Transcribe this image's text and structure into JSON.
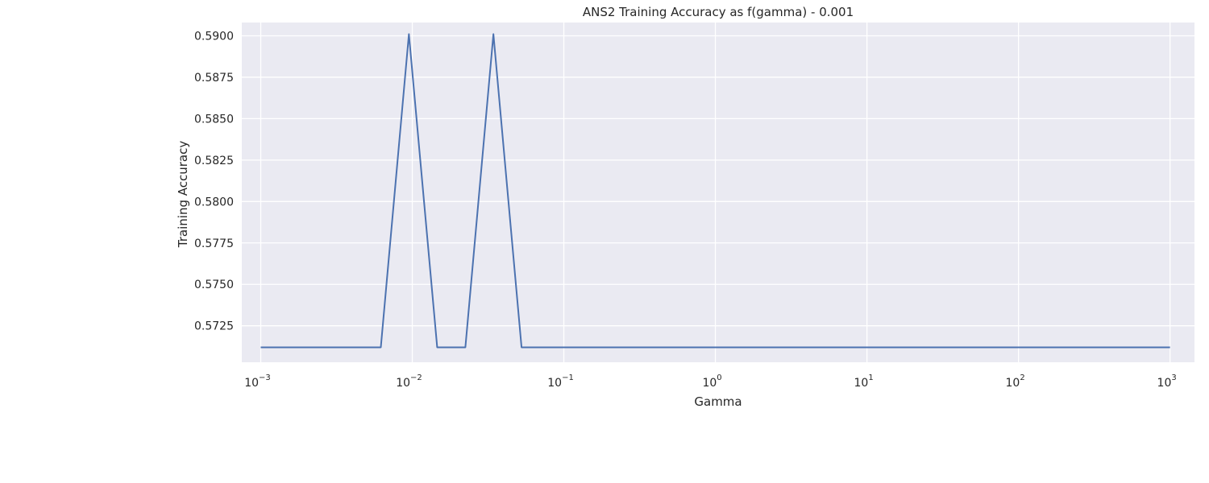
{
  "chart_data": {
    "type": "line",
    "title": "ANS2 Training Accuracy as f(gamma) - 0.001",
    "xlabel": "Gamma",
    "ylabel": "Training Accuracy",
    "xscale": "log",
    "xlim": [
      0.00075,
      1450
    ],
    "ylim": [
      0.5703,
      0.5908
    ],
    "grid": true,
    "x_ticks": [
      {
        "value": 0.001,
        "base": "10",
        "exp": "−3"
      },
      {
        "value": 0.01,
        "base": "10",
        "exp": "−2"
      },
      {
        "value": 0.1,
        "base": "10",
        "exp": "−1"
      },
      {
        "value": 1,
        "base": "10",
        "exp": "0"
      },
      {
        "value": 10,
        "base": "10",
        "exp": "1"
      },
      {
        "value": 100,
        "base": "10",
        "exp": "2"
      },
      {
        "value": 1000,
        "base": "10",
        "exp": "3"
      }
    ],
    "y_ticks": [
      {
        "value": 0.5725,
        "label": "0.5725"
      },
      {
        "value": 0.575,
        "label": "0.5750"
      },
      {
        "value": 0.5775,
        "label": "0.5775"
      },
      {
        "value": 0.58,
        "label": "0.5800"
      },
      {
        "value": 0.5825,
        "label": "0.5825"
      },
      {
        "value": 0.585,
        "label": "0.5850"
      },
      {
        "value": 0.5875,
        "label": "0.5875"
      },
      {
        "value": 0.59,
        "label": "0.5900"
      }
    ],
    "series": [
      {
        "color": "#4c72b0",
        "x": [
          0.001,
          0.0015,
          0.0023,
          0.0035,
          0.0053,
          0.0062,
          0.0095,
          0.0146,
          0.0224,
          0.0343,
          0.0526,
          0.1,
          1,
          10,
          100,
          1000
        ],
        "y": [
          0.5712,
          0.5712,
          0.5712,
          0.5712,
          0.5712,
          0.5712,
          0.5901,
          0.5712,
          0.5712,
          0.5901,
          0.5712,
          0.5712,
          0.5712,
          0.5712,
          0.5712,
          0.5712
        ]
      }
    ]
  }
}
